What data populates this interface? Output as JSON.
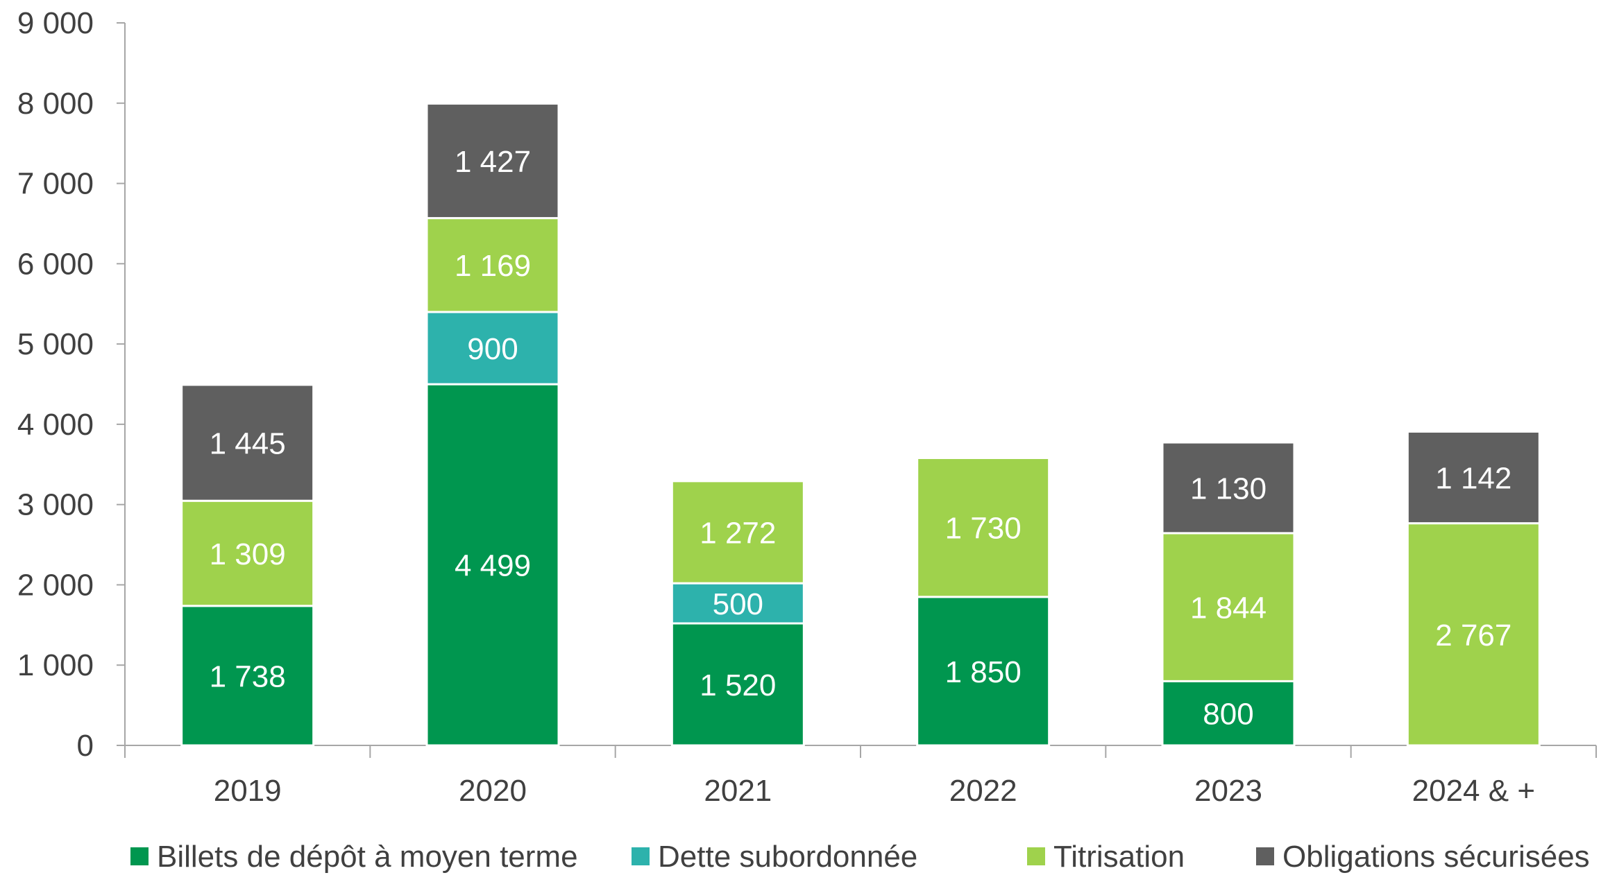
{
  "chart_data": {
    "type": "bar",
    "stacked": true,
    "categories": [
      "2019",
      "2020",
      "2021",
      "2022",
      "2023",
      "2024 & +"
    ],
    "series": [
      {
        "name": "Billets de dépôt à moyen terme",
        "color": "#00964f",
        "values": [
          1738,
          4499,
          1520,
          1850,
          800,
          0
        ],
        "labels": [
          "1 738",
          "4 499",
          "1 520",
          "1 850",
          "800",
          ""
        ]
      },
      {
        "name": "Dette subordonnée",
        "color": "#2db2ac",
        "values": [
          0,
          900,
          500,
          0,
          0,
          0
        ],
        "labels": [
          "",
          "900",
          "500",
          "",
          "",
          ""
        ]
      },
      {
        "name": "Titrisation",
        "color": "#9fd24c",
        "values": [
          1309,
          1169,
          1272,
          1730,
          1844,
          2767
        ],
        "labels": [
          "1 309",
          "1 169",
          "1 272",
          "1 730",
          "1 844",
          "2 767"
        ]
      },
      {
        "name": "Obligations sécurisées",
        "color": "#5f5f5f",
        "values": [
          1445,
          1427,
          0,
          0,
          1130,
          1142
        ],
        "labels": [
          "1 445",
          "1 427",
          "",
          "",
          "1 130",
          "1 142"
        ]
      }
    ],
    "ylim": [
      0,
      9000
    ],
    "y_ticks": [
      0,
      1000,
      2000,
      3000,
      4000,
      5000,
      6000,
      7000,
      8000,
      9000
    ],
    "y_tick_labels": [
      "0",
      "1 000",
      "2 000",
      "3 000",
      "4 000",
      "5 000",
      "6 000",
      "7 000",
      "8 000",
      "9 000"
    ],
    "grid": false,
    "legend_position": "bottom",
    "title": "",
    "xlabel": "",
    "ylabel": ""
  }
}
